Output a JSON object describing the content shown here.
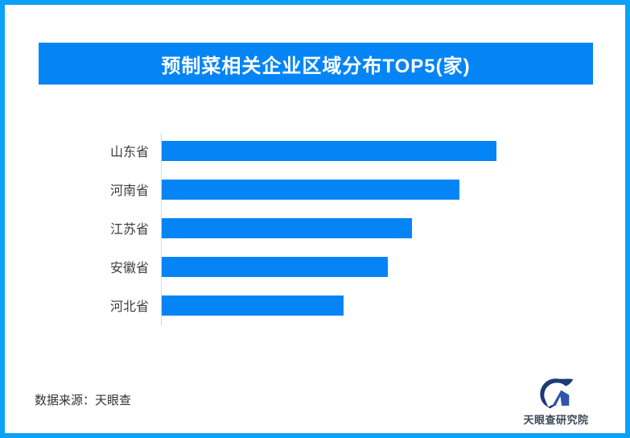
{
  "header": {
    "title": "预制菜相关企业区域分布TOP5(家)"
  },
  "chart_data": {
    "type": "bar",
    "orientation": "horizontal",
    "title": "预制菜相关企业区域分布TOP5(家)",
    "categories": [
      "山东省",
      "河南省",
      "江苏省",
      "安徽省",
      "河北省"
    ],
    "values": [
      416,
      370,
      311,
      281,
      226
    ],
    "values_note": "no numeric value labels are shown in the image; values are relative bar lengths measured in px",
    "value_labels_shown": false,
    "xlabel": "",
    "ylabel": "",
    "grid": false,
    "legend": false,
    "axis_line": "left",
    "bar_color": "#0585F5"
  },
  "footer": {
    "source": "数据来源：天眼查"
  },
  "logo": {
    "text": "天眼查研究院"
  },
  "colors": {
    "accent_blue": "#0585F5",
    "frame_border_blue": "#0AA1F7",
    "axis_gray": "#d9d9d9",
    "label_text": "#3d3d3d",
    "logo_navy": "#1C3A73",
    "logo_blue": "#2E55A8",
    "logo_text": "#3B4A5A"
  }
}
